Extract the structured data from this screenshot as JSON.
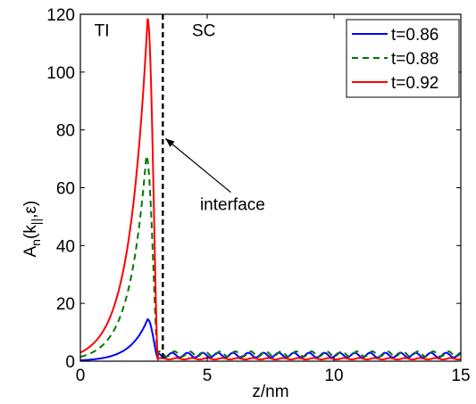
{
  "chart_data": {
    "type": "line",
    "xlabel": "z/nm",
    "ylabel_main": "A",
    "ylabel_sub_n": "n",
    "ylabel_paren_open": "(k",
    "ylabel_sub_par": "||",
    "ylabel_rest": ",ε)",
    "xlim": [
      0,
      15
    ],
    "ylim": [
      0,
      120
    ],
    "xticks": [
      0,
      5,
      10,
      15
    ],
    "yticks": [
      0,
      20,
      40,
      60,
      80,
      100,
      120
    ],
    "xtick_labels": [
      "0",
      "5",
      "10",
      "15"
    ],
    "ytick_labels": [
      "0",
      "20",
      "40",
      "60",
      "80",
      "100",
      "120"
    ],
    "grid": false,
    "legend_position": "top-right",
    "region_labels": {
      "left": "TI",
      "right": "SC"
    },
    "interface": {
      "x": 3.25,
      "label": "interface",
      "arrow_tip": [
        3.25,
        77
      ],
      "text_at": [
        6.0,
        51
      ]
    },
    "series": [
      {
        "name": "t=0.86",
        "color": "#0000ff",
        "dash": "solid",
        "ti": {
          "x0": 0.0,
          "xpeak": 2.65,
          "xdrop": 3.05,
          "y0": 0.3,
          "peak": 14.5,
          "yafter": 1.0
        },
        "sc": {
          "start": 3.05,
          "base": 1.3,
          "amp": 1.6,
          "period": 0.6,
          "phase": 0.3
        }
      },
      {
        "name": "t=0.88",
        "color": "#007700",
        "dash": "dashed",
        "ti": {
          "x0": 0.0,
          "xpeak": 2.6,
          "xdrop": 3.05,
          "y0": 1.5,
          "peak": 71,
          "yafter": 1.0
        },
        "sc": {
          "start": 3.05,
          "base": 1.6,
          "amp": 1.8,
          "period": 0.6,
          "phase": 0.15
        }
      },
      {
        "name": "t=0.92",
        "color": "#ff0000",
        "dash": "solid",
        "ti": {
          "x0": 0.0,
          "xpeak": 2.65,
          "xdrop": 3.05,
          "y0": 3.0,
          "peak": 118.5,
          "yafter": 0.5
        },
        "sc": {
          "start": 3.05,
          "base": 0.6,
          "amp": 0.5,
          "period": 0.6,
          "phase": 0.0
        }
      }
    ]
  }
}
